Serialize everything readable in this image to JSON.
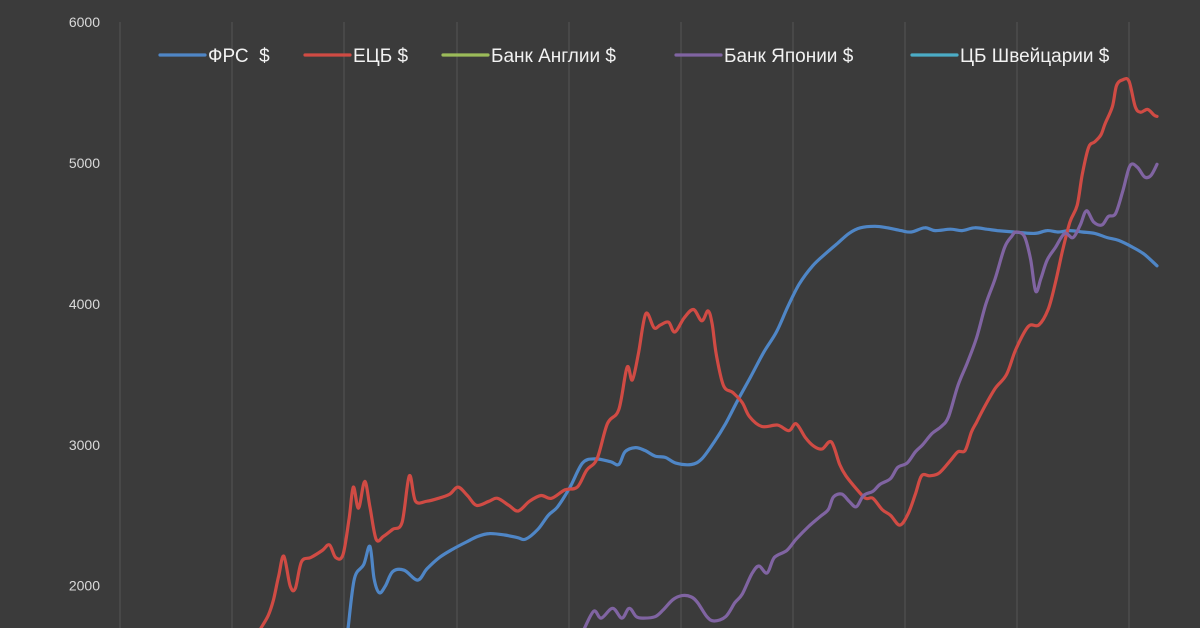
{
  "chart_data": {
    "type": "line",
    "title": "",
    "xlabel": "",
    "ylabel": "",
    "ylim": [
      1700,
      6000
    ],
    "yticks": [
      2000,
      3000,
      4000,
      5000,
      6000
    ],
    "yticks_labels": [
      "2000",
      "3000",
      "4000",
      "5000",
      "6000"
    ],
    "x_index_range": [
      0,
      100
    ],
    "grid": "vertical",
    "legend_position": "top",
    "series": [
      {
        "name": "ФРС  $",
        "color": "#4f86c6",
        "points": [
          [
            22,
            1700
          ],
          [
            22.6,
            2050
          ],
          [
            23.5,
            2150
          ],
          [
            24.1,
            2280
          ],
          [
            24.5,
            2050
          ],
          [
            25,
            1950
          ],
          [
            25.6,
            2000
          ],
          [
            26.3,
            2100
          ],
          [
            27.4,
            2110
          ],
          [
            28.7,
            2040
          ],
          [
            29.6,
            2120
          ],
          [
            30.8,
            2200
          ],
          [
            32.1,
            2260
          ],
          [
            33.4,
            2310
          ],
          [
            34.5,
            2350
          ],
          [
            35.6,
            2370
          ],
          [
            37.1,
            2360
          ],
          [
            38.4,
            2340
          ],
          [
            39.1,
            2330
          ],
          [
            40.3,
            2400
          ],
          [
            41.3,
            2500
          ],
          [
            42.2,
            2560
          ],
          [
            43.4,
            2700
          ],
          [
            44.6,
            2870
          ],
          [
            45.8,
            2900
          ],
          [
            47.3,
            2880
          ],
          [
            48.1,
            2860
          ],
          [
            48.7,
            2950
          ],
          [
            49.7,
            2980
          ],
          [
            50.6,
            2960
          ],
          [
            51.6,
            2920
          ],
          [
            52.6,
            2910
          ],
          [
            53.6,
            2870
          ],
          [
            55.1,
            2860
          ],
          [
            56.1,
            2900
          ],
          [
            57.3,
            3020
          ],
          [
            58.4,
            3150
          ],
          [
            59.6,
            3320
          ],
          [
            60.8,
            3480
          ],
          [
            62.1,
            3660
          ],
          [
            63.3,
            3800
          ],
          [
            64.4,
            3980
          ],
          [
            65.5,
            4140
          ],
          [
            66.8,
            4270
          ],
          [
            68.1,
            4360
          ],
          [
            69.2,
            4430
          ],
          [
            70.3,
            4500
          ],
          [
            71.4,
            4540
          ],
          [
            72.8,
            4550
          ],
          [
            74,
            4540
          ],
          [
            75.3,
            4520
          ],
          [
            76.3,
            4510
          ],
          [
            77.6,
            4540
          ],
          [
            78.6,
            4520
          ],
          [
            80.1,
            4530
          ],
          [
            81.2,
            4520
          ],
          [
            82.4,
            4540
          ],
          [
            83.6,
            4530
          ],
          [
            84.6,
            4520
          ],
          [
            86.2,
            4510
          ],
          [
            88.2,
            4500
          ],
          [
            89.4,
            4520
          ],
          [
            90.5,
            4510
          ],
          [
            91.6,
            4520
          ],
          [
            92.8,
            4510
          ],
          [
            94,
            4500
          ],
          [
            95.2,
            4470
          ],
          [
            96.3,
            4450
          ],
          [
            97.7,
            4400
          ],
          [
            98.8,
            4350
          ],
          [
            100,
            4270
          ]
        ]
      },
      {
        "name": "ЕЦБ $",
        "color": "#d04b44",
        "points": [
          [
            13.6,
            1700
          ],
          [
            14.3,
            1790
          ],
          [
            14.8,
            1900
          ],
          [
            15.3,
            2070
          ],
          [
            15.8,
            2210
          ],
          [
            16.4,
            2000
          ],
          [
            16.9,
            1980
          ],
          [
            17.5,
            2170
          ],
          [
            18.4,
            2200
          ],
          [
            19.5,
            2250
          ],
          [
            20.2,
            2290
          ],
          [
            20.8,
            2200
          ],
          [
            21.5,
            2220
          ],
          [
            22.1,
            2480
          ],
          [
            22.5,
            2700
          ],
          [
            23,
            2550
          ],
          [
            23.6,
            2740
          ],
          [
            24.1,
            2560
          ],
          [
            24.7,
            2330
          ],
          [
            25.4,
            2350
          ],
          [
            26.3,
            2400
          ],
          [
            27.2,
            2450
          ],
          [
            27.9,
            2780
          ],
          [
            28.5,
            2600
          ],
          [
            29.6,
            2600
          ],
          [
            30.7,
            2620
          ],
          [
            31.8,
            2650
          ],
          [
            32.6,
            2700
          ],
          [
            33.5,
            2640
          ],
          [
            34.4,
            2570
          ],
          [
            35.6,
            2600
          ],
          [
            36.4,
            2620
          ],
          [
            37.5,
            2570
          ],
          [
            38.4,
            2530
          ],
          [
            39.5,
            2600
          ],
          [
            40.6,
            2640
          ],
          [
            41.6,
            2620
          ],
          [
            42.9,
            2680
          ],
          [
            44.1,
            2700
          ],
          [
            45,
            2820
          ],
          [
            46,
            2900
          ],
          [
            47,
            3150
          ],
          [
            48.1,
            3250
          ],
          [
            48.9,
            3550
          ],
          [
            49.4,
            3460
          ],
          [
            50,
            3650
          ],
          [
            50.7,
            3930
          ],
          [
            51.5,
            3830
          ],
          [
            52.1,
            3850
          ],
          [
            52.9,
            3870
          ],
          [
            53.5,
            3800
          ],
          [
            54.4,
            3900
          ],
          [
            55.3,
            3960
          ],
          [
            56.1,
            3880
          ],
          [
            56.7,
            3950
          ],
          [
            57.1,
            3860
          ],
          [
            57.5,
            3640
          ],
          [
            58.2,
            3420
          ],
          [
            59.1,
            3370
          ],
          [
            60,
            3300
          ],
          [
            60.7,
            3200
          ],
          [
            61.9,
            3130
          ],
          [
            63.4,
            3140
          ],
          [
            64.5,
            3100
          ],
          [
            65.2,
            3150
          ],
          [
            66.1,
            3050
          ],
          [
            66.9,
            2990
          ],
          [
            67.7,
            2970
          ],
          [
            68.6,
            3020
          ],
          [
            69.4,
            2860
          ],
          [
            70,
            2780
          ],
          [
            71.1,
            2680
          ],
          [
            71.9,
            2620
          ],
          [
            72.6,
            2620
          ],
          [
            73.5,
            2540
          ],
          [
            74.3,
            2500
          ],
          [
            75.2,
            2430
          ],
          [
            76,
            2510
          ],
          [
            76.7,
            2650
          ],
          [
            77.3,
            2780
          ],
          [
            78.1,
            2780
          ],
          [
            79,
            2800
          ],
          [
            80.1,
            2890
          ],
          [
            80.8,
            2950
          ],
          [
            81.5,
            2960
          ],
          [
            82.1,
            3090
          ],
          [
            82.6,
            3160
          ],
          [
            83.3,
            3260
          ],
          [
            84.4,
            3400
          ],
          [
            85.5,
            3500
          ],
          [
            86.4,
            3680
          ],
          [
            87.6,
            3840
          ],
          [
            88.6,
            3850
          ],
          [
            89.5,
            3960
          ],
          [
            90.2,
            4150
          ],
          [
            90.9,
            4380
          ],
          [
            91.6,
            4580
          ],
          [
            92.3,
            4700
          ],
          [
            92.8,
            4920
          ],
          [
            93.4,
            5110
          ],
          [
            94,
            5150
          ],
          [
            94.6,
            5200
          ],
          [
            95,
            5280
          ],
          [
            95.7,
            5400
          ],
          [
            96.1,
            5550
          ],
          [
            96.7,
            5590
          ],
          [
            97.3,
            5580
          ],
          [
            97.9,
            5400
          ],
          [
            98.4,
            5360
          ],
          [
            99.1,
            5380
          ],
          [
            99.7,
            5340
          ],
          [
            100,
            5330
          ]
        ]
      },
      {
        "name": "Банк Англии $",
        "color": "#9bbb59",
        "points": []
      },
      {
        "name": "Банк Японии $",
        "color": "#8064a2",
        "points": [
          [
            44.8,
            1700
          ],
          [
            45.7,
            1820
          ],
          [
            46.4,
            1770
          ],
          [
            47.5,
            1840
          ],
          [
            48.4,
            1770
          ],
          [
            49.1,
            1840
          ],
          [
            49.8,
            1780
          ],
          [
            50.5,
            1770
          ],
          [
            51.6,
            1780
          ],
          [
            52.4,
            1830
          ],
          [
            53.3,
            1900
          ],
          [
            54.2,
            1930
          ],
          [
            55.1,
            1920
          ],
          [
            55.7,
            1880
          ],
          [
            56.6,
            1780
          ],
          [
            57.3,
            1750
          ],
          [
            58.4,
            1780
          ],
          [
            59.3,
            1880
          ],
          [
            60,
            1940
          ],
          [
            60.9,
            2080
          ],
          [
            61.6,
            2140
          ],
          [
            62.4,
            2090
          ],
          [
            63.1,
            2200
          ],
          [
            64.3,
            2250
          ],
          [
            65.2,
            2330
          ],
          [
            66.4,
            2420
          ],
          [
            67.5,
            2490
          ],
          [
            68.3,
            2540
          ],
          [
            68.8,
            2630
          ],
          [
            69.6,
            2650
          ],
          [
            70.3,
            2600
          ],
          [
            71,
            2560
          ],
          [
            71.7,
            2640
          ],
          [
            72.6,
            2670
          ],
          [
            73.3,
            2720
          ],
          [
            74.3,
            2760
          ],
          [
            75,
            2840
          ],
          [
            75.9,
            2870
          ],
          [
            76.7,
            2950
          ],
          [
            77.4,
            3000
          ],
          [
            78.3,
            3080
          ],
          [
            79.2,
            3130
          ],
          [
            79.9,
            3200
          ],
          [
            80.8,
            3420
          ],
          [
            81.7,
            3580
          ],
          [
            82.6,
            3760
          ],
          [
            83.5,
            4000
          ],
          [
            84.4,
            4180
          ],
          [
            85.3,
            4400
          ],
          [
            86,
            4480
          ],
          [
            86.4,
            4510
          ],
          [
            87.2,
            4480
          ],
          [
            87.8,
            4320
          ],
          [
            88.3,
            4090
          ],
          [
            88.8,
            4180
          ],
          [
            89.4,
            4310
          ],
          [
            90.2,
            4400
          ],
          [
            91.1,
            4500
          ],
          [
            91.9,
            4470
          ],
          [
            92.6,
            4560
          ],
          [
            93.2,
            4660
          ],
          [
            93.9,
            4580
          ],
          [
            94.7,
            4560
          ],
          [
            95.3,
            4620
          ],
          [
            96,
            4640
          ],
          [
            96.7,
            4800
          ],
          [
            97.4,
            4980
          ],
          [
            98.1,
            4970
          ],
          [
            98.8,
            4900
          ],
          [
            99.4,
            4910
          ],
          [
            100,
            4990
          ]
        ]
      },
      {
        "name": "ЦБ Швейцарии $",
        "color": "#4bacc6",
        "points": []
      }
    ]
  }
}
